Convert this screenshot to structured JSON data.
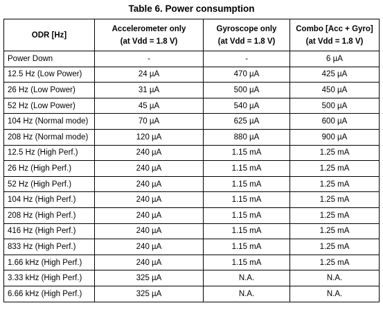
{
  "caption": "Table 6. Power consumption",
  "header": {
    "col1": "ODR [Hz]",
    "col2_line1": "Accelerometer only",
    "col2_line2": "(at Vdd = 1.8 V)",
    "col3_line1": "Gyroscope only",
    "col3_line2": "(at Vdd = 1.8 V)",
    "col4_line1": "Combo [Acc + Gyro]",
    "col4_line2": "(at Vdd = 1.8 V)"
  },
  "rows": [
    {
      "odr": "Power Down",
      "acc": "-",
      "gyro": "-",
      "combo": "6 µA"
    },
    {
      "odr": "12.5 Hz (Low Power)",
      "acc": "24 µA",
      "gyro": "470 µA",
      "combo": "425 µA"
    },
    {
      "odr": "26 Hz (Low Power)",
      "acc": "31 µA",
      "gyro": "500 µA",
      "combo": "450 µA"
    },
    {
      "odr": "52 Hz (Low Power)",
      "acc": "45 µA",
      "gyro": "540 µA",
      "combo": "500 µA"
    },
    {
      "odr": "104 Hz (Normal mode)",
      "acc": "70 µA",
      "gyro": "625 µA",
      "combo": "600 µA"
    },
    {
      "odr": "208 Hz (Normal mode)",
      "acc": "120 µA",
      "gyro": "880 µA",
      "combo": "900 µA"
    },
    {
      "odr": "12.5 Hz (High Perf.)",
      "acc": "240 µA",
      "gyro": "1.15 mA",
      "combo": "1.25 mA"
    },
    {
      "odr": "26 Hz (High Perf.)",
      "acc": "240 µA",
      "gyro": "1.15 mA",
      "combo": "1.25 mA"
    },
    {
      "odr": "52 Hz (High Perf.)",
      "acc": "240 µA",
      "gyro": "1.15 mA",
      "combo": "1.25 mA"
    },
    {
      "odr": "104 Hz (High Perf.)",
      "acc": "240 µA",
      "gyro": "1.15 mA",
      "combo": "1.25 mA"
    },
    {
      "odr": "208 Hz (High Perf.)",
      "acc": "240 µA",
      "gyro": "1.15 mA",
      "combo": "1.25 mA"
    },
    {
      "odr": "416 Hz (High Perf.)",
      "acc": "240 µA",
      "gyro": "1.15 mA",
      "combo": "1.25 mA"
    },
    {
      "odr": "833 Hz (High Perf.)",
      "acc": "240 µA",
      "gyro": "1.15 mA",
      "combo": "1.25 mA"
    },
    {
      "odr": "1.66 kHz (High Perf.)",
      "acc": "240 µA",
      "gyro": "1.15 mA",
      "combo": "1.25 mA"
    },
    {
      "odr": "3.33 kHz (High Perf.)",
      "acc": "325 µA",
      "gyro": "N.A.",
      "combo": "N.A."
    },
    {
      "odr": "6.66 kHz (High Perf.)",
      "acc": "325 µA",
      "gyro": "N.A.",
      "combo": "N.A."
    }
  ]
}
